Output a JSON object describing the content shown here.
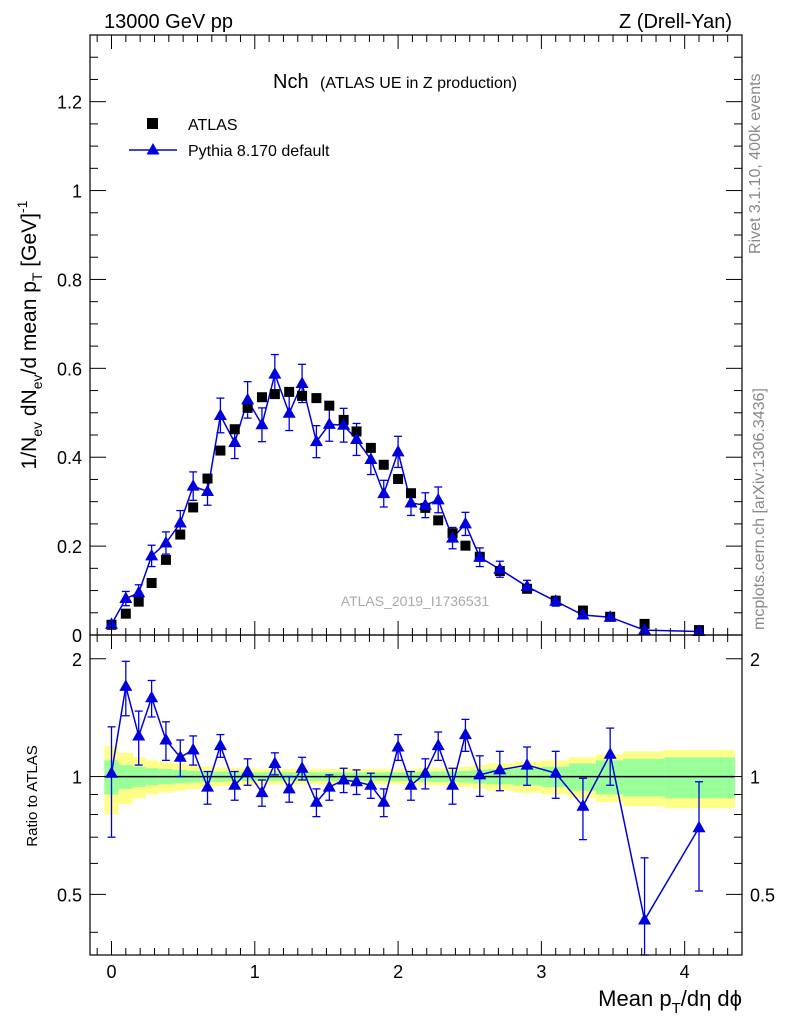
{
  "header": {
    "left": "13000 GeV pp",
    "right": "Z (Drell-Yan)"
  },
  "side": {
    "rivet": "Rivet 3.1.10,  400k events",
    "mcplots": "mcplots.cern.ch [arXiv:1306.3436]"
  },
  "colors": {
    "pythia": "#0000dd",
    "atlas": "#000000",
    "band_inner": "#99ff99",
    "band_outer": "#ffff88"
  },
  "chart_data": [
    {
      "type": "scatter",
      "panel": "main",
      "title": "Nch",
      "title_sub": "(ATLAS UE in Z production)",
      "ylabel": "1/N_ev dN_ev/d mean p_T [GeV]^-1",
      "analysis_label": "ATLAS_2019_I1736531",
      "xlim": [
        -0.15,
        4.4
      ],
      "ylim": [
        0,
        1.35
      ],
      "yticks": [
        0,
        0.2,
        0.4,
        0.6,
        0.8,
        1,
        1.2
      ],
      "ytick_labels": [
        "0",
        "0.2",
        "0.4",
        "0.6",
        "0.8",
        "1",
        "1.2"
      ],
      "legend": {
        "position": "top-left",
        "entries": [
          "ATLAS",
          "Pythia 8.170 default"
        ]
      },
      "series": [
        {
          "name": "ATLAS",
          "marker": "square",
          "x": [
            0.0,
            0.1,
            0.19,
            0.28,
            0.38,
            0.48,
            0.57,
            0.67,
            0.76,
            0.86,
            0.95,
            1.05,
            1.14,
            1.24,
            1.33,
            1.43,
            1.52,
            1.62,
            1.71,
            1.81,
            1.9,
            2.0,
            2.09,
            2.19,
            2.28,
            2.38,
            2.47,
            2.57,
            2.71,
            2.9,
            3.1,
            3.29,
            3.48,
            3.72,
            4.1
          ],
          "y": [
            0.023,
            0.048,
            0.075,
            0.117,
            0.169,
            0.226,
            0.287,
            0.352,
            0.415,
            0.463,
            0.511,
            0.535,
            0.542,
            0.547,
            0.538,
            0.533,
            0.516,
            0.484,
            0.458,
            0.421,
            0.383,
            0.351,
            0.319,
            0.286,
            0.258,
            0.229,
            0.201,
            0.176,
            0.144,
            0.104,
            0.077,
            0.055,
            0.041,
            0.025,
            0.011
          ]
        },
        {
          "name": "Pythia 8.170 default",
          "marker": "triangle",
          "x": [
            0.0,
            0.1,
            0.19,
            0.28,
            0.38,
            0.48,
            0.57,
            0.67,
            0.76,
            0.86,
            0.95,
            1.05,
            1.14,
            1.24,
            1.33,
            1.43,
            1.52,
            1.62,
            1.71,
            1.81,
            1.9,
            2.0,
            2.09,
            2.19,
            2.28,
            2.38,
            2.47,
            2.57,
            2.71,
            2.9,
            3.1,
            3.29,
            3.48,
            3.72,
            4.1
          ],
          "y": [
            0.024,
            0.082,
            0.095,
            0.178,
            0.207,
            0.252,
            0.335,
            0.323,
            0.494,
            0.433,
            0.529,
            0.473,
            0.587,
            0.499,
            0.566,
            0.435,
            0.474,
            0.472,
            0.44,
            0.395,
            0.318,
            0.412,
            0.297,
            0.292,
            0.304,
            0.218,
            0.25,
            0.175,
            0.148,
            0.109,
            0.076,
            0.045,
            0.04,
            0.011,
            0.008
          ],
          "yerr": [
            0.005,
            0.016,
            0.018,
            0.024,
            0.025,
            0.028,
            0.032,
            0.031,
            0.039,
            0.036,
            0.041,
            0.038,
            0.044,
            0.039,
            0.043,
            0.036,
            0.038,
            0.038,
            0.036,
            0.034,
            0.03,
            0.035,
            0.028,
            0.028,
            0.029,
            0.024,
            0.026,
            0.021,
            0.018,
            0.014,
            0.011,
            0.008,
            0.007,
            0.004,
            0.003
          ]
        }
      ]
    },
    {
      "type": "scatter",
      "panel": "ratio",
      "ylabel": "Ratio to ATLAS",
      "xlabel": "Mean p_T/dη dϕ",
      "xlim": [
        -0.15,
        4.4
      ],
      "xticks": [
        0,
        1,
        2,
        3,
        4
      ],
      "xtick_labels": [
        "0",
        "1",
        "2",
        "3",
        "4"
      ],
      "ylim": [
        0.35,
        2.3
      ],
      "yticks": [
        0.5,
        1,
        2
      ],
      "ytick_labels": [
        "0.5",
        "1",
        "2"
      ],
      "reference": 1.0,
      "bands": {
        "x_edges": [
          -0.05,
          0.05,
          0.15,
          0.24,
          0.33,
          0.43,
          0.52,
          0.62,
          0.71,
          0.81,
          0.9,
          1.0,
          1.09,
          1.19,
          1.28,
          1.38,
          1.47,
          1.57,
          1.66,
          1.76,
          1.85,
          1.95,
          2.04,
          2.14,
          2.23,
          2.33,
          2.42,
          2.52,
          2.62,
          2.81,
          3.0,
          3.19,
          3.38,
          3.57,
          3.86,
          4.35
        ],
        "inner": [
          0.1,
          0.07,
          0.06,
          0.05,
          0.045,
          0.04,
          0.035,
          0.03,
          0.03,
          0.025,
          0.025,
          0.025,
          0.025,
          0.025,
          0.025,
          0.025,
          0.025,
          0.025,
          0.025,
          0.025,
          0.025,
          0.025,
          0.025,
          0.03,
          0.03,
          0.03,
          0.035,
          0.04,
          0.045,
          0.05,
          0.06,
          0.08,
          0.1,
          0.11,
          0.12
        ],
        "outer": [
          0.2,
          0.15,
          0.12,
          0.1,
          0.09,
          0.08,
          0.07,
          0.06,
          0.055,
          0.05,
          0.05,
          0.045,
          0.045,
          0.045,
          0.045,
          0.045,
          0.045,
          0.045,
          0.045,
          0.045,
          0.045,
          0.045,
          0.045,
          0.05,
          0.05,
          0.055,
          0.06,
          0.07,
          0.08,
          0.09,
          0.1,
          0.12,
          0.14,
          0.16,
          0.17
        ]
      },
      "series": [
        {
          "name": "Pythia 8.170 default",
          "x": [
            0.0,
            0.1,
            0.19,
            0.28,
            0.38,
            0.48,
            0.57,
            0.67,
            0.76,
            0.86,
            0.95,
            1.05,
            1.14,
            1.24,
            1.33,
            1.43,
            1.52,
            1.62,
            1.71,
            1.81,
            1.9,
            2.0,
            2.09,
            2.19,
            2.28,
            2.38,
            2.47,
            2.57,
            2.71,
            2.9,
            3.1,
            3.29,
            3.48,
            3.72,
            4.1
          ],
          "y": [
            1.02,
            1.7,
            1.27,
            1.59,
            1.24,
            1.12,
            1.17,
            0.94,
            1.2,
            0.95,
            1.03,
            0.91,
            1.08,
            0.93,
            1.05,
            0.86,
            0.94,
            0.98,
            0.97,
            0.95,
            0.86,
            1.19,
            0.95,
            1.02,
            1.2,
            0.95,
            1.28,
            1.01,
            1.04,
            1.07,
            1.02,
            0.84,
            1.14,
            0.43,
            0.74
          ],
          "yerr": [
            0.32,
            0.27,
            0.2,
            0.17,
            0.14,
            0.12,
            0.1,
            0.09,
            0.08,
            0.08,
            0.08,
            0.07,
            0.07,
            0.07,
            0.07,
            0.07,
            0.07,
            0.07,
            0.07,
            0.07,
            0.07,
            0.09,
            0.08,
            0.09,
            0.1,
            0.1,
            0.12,
            0.12,
            0.12,
            0.12,
            0.14,
            0.15,
            0.19,
            0.19,
            0.23
          ]
        }
      ]
    }
  ]
}
